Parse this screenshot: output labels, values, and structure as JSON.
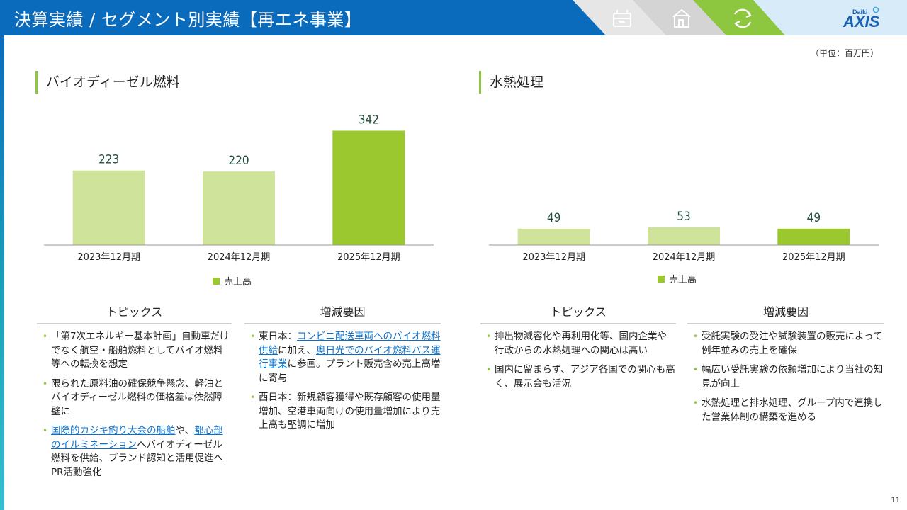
{
  "header": {
    "title": "決算実績 / セグメント別実績【再エネ事業】",
    "tabs": [
      {
        "icon": "building-sign-icon"
      },
      {
        "icon": "house-icon"
      },
      {
        "icon": "recycle-icon",
        "active": true
      }
    ],
    "logo": {
      "top": "Daiki",
      "main": "AXIS"
    },
    "colors": {
      "header": "#0a6bbd",
      "accent": "#8dc63f",
      "bar_light": "#cfe49a",
      "bar_dark": "#9bc82e"
    }
  },
  "unit_label": "（単位：百万円）",
  "left": {
    "section_title": "バイオディーゼル燃料",
    "topics_heading": "トピックス",
    "factors_heading": "増減要因",
    "topics": [
      [
        {
          "t": "「第7次エネルギー基本計画」自動車だけでなく航空・船舶燃料としてバイオ燃料等への転換を想定"
        }
      ],
      [
        {
          "t": "限られた原料油の確保競争懸念、軽油とバイオディーゼル燃料の価格差は依然障壁に"
        }
      ],
      [
        {
          "t": "国際的カジキ釣り大会の船舶",
          "link": true
        },
        {
          "t": "や、"
        },
        {
          "t": "都心部のイルミネーション",
          "link": true
        },
        {
          "t": "へバイオディーゼル燃料を供給、ブランド認知と活用促進へPR活動強化"
        }
      ]
    ],
    "factors": [
      [
        {
          "t": "東日本："
        },
        {
          "t": "コンビニ配送車両へのバイオ燃料供給",
          "link": true
        },
        {
          "t": "に加え、"
        },
        {
          "t": "奥日光でのバイオ燃料バス運行事業",
          "link": true
        },
        {
          "t": "に参画。プラント販売含め売上高増に寄与"
        }
      ],
      [
        {
          "t": "西日本：新規顧客獲得や既存顧客の使用量増加、空港車両向けの使用量増加により売上高も堅調に増加"
        }
      ]
    ]
  },
  "right": {
    "section_title": "水熱処理",
    "topics_heading": "トピックス",
    "factors_heading": "増減要因",
    "topics": [
      [
        {
          "t": "排出物減容化や再利用化等、国内企業や行政からの水熱処理への関心は高い"
        }
      ],
      [
        {
          "t": "国内に留まらず、アジア各国での関心も高く、展示会も活況"
        }
      ]
    ],
    "factors": [
      [
        {
          "t": "受託実験の受注や試験装置の販売によって例年並みの売上を確保"
        }
      ],
      [
        {
          "t": "幅広い受託実験の依頼増加により当社の知見が向上"
        }
      ],
      [
        {
          "t": "水熱処理と排水処理、グループ内で連携した営業体制の構築を進める"
        }
      ]
    ]
  },
  "chart_data": [
    {
      "type": "bar",
      "title": "バイオディーゼル燃料",
      "categories": [
        "2023年12月期",
        "2024年12月期",
        "2025年12月期"
      ],
      "series": [
        {
          "name": "売上高",
          "values": [
            223,
            220,
            342
          ]
        }
      ],
      "ylim": [
        0,
        360
      ],
      "highlight_index": 2,
      "legend": "bottom-center"
    },
    {
      "type": "bar",
      "title": "水熱処理",
      "categories": [
        "2023年12月期",
        "2024年12月期",
        "2025年12月期"
      ],
      "series": [
        {
          "name": "売上高",
          "values": [
            49,
            53,
            49
          ]
        }
      ],
      "ylim": [
        0,
        360
      ],
      "highlight_index": 2,
      "legend": "bottom-center"
    }
  ],
  "page_number": "11"
}
